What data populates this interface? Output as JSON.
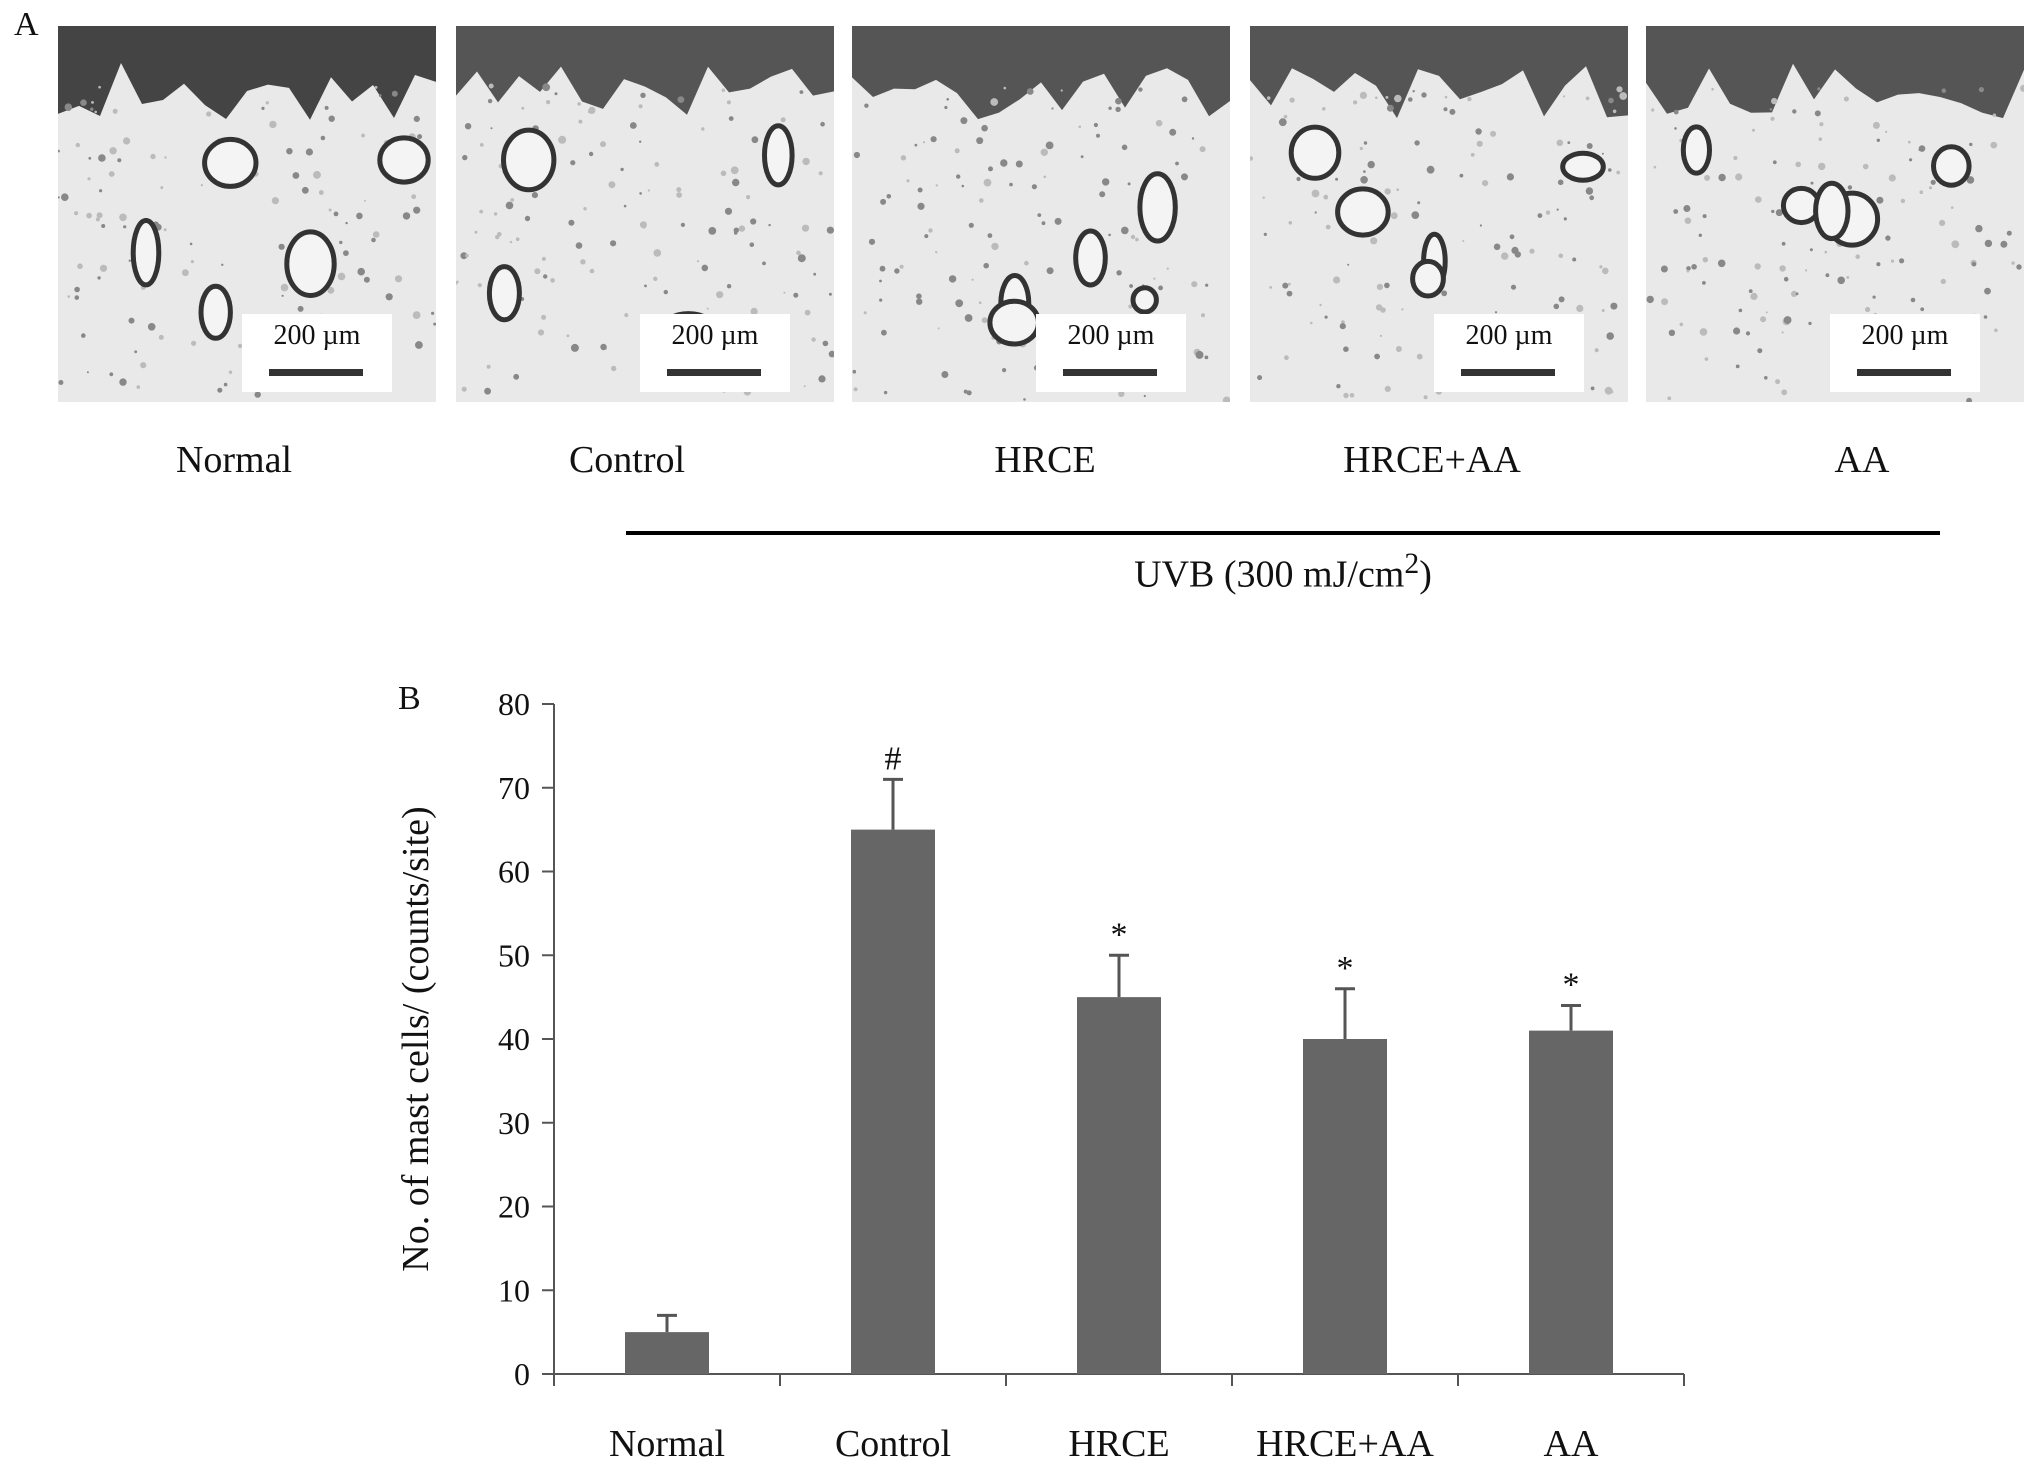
{
  "panel_a": {
    "letter": "A",
    "scale_label": "200 µm",
    "groups": [
      "Normal",
      "Control",
      "HRCE",
      "HRCE+AA",
      "AA"
    ],
    "uvb_label_main": "UVB (300 mJ/cm",
    "uvb_label_sup": "2",
    "uvb_label_close": ")"
  },
  "panel_b": {
    "letter": "B"
  },
  "colors": {
    "bar": "#666666",
    "axis": "#555555",
    "text": "#111111"
  },
  "chart_data": {
    "type": "bar",
    "categories": [
      "Normal",
      "Control",
      "HRCE",
      "HRCE+AA",
      "AA"
    ],
    "values": [
      5,
      65,
      45,
      40,
      41
    ],
    "errors": [
      2,
      6,
      5,
      6,
      3
    ],
    "annotations": [
      "",
      "#",
      "*",
      "*",
      "*"
    ],
    "title": "",
    "xlabel": "",
    "ylabel": "No. of mast cells/ (counts/site)",
    "ylim": [
      0,
      80
    ],
    "yticks": [
      0,
      10,
      20,
      30,
      40,
      50,
      60,
      70,
      80
    ],
    "grid": false,
    "legend": false
  }
}
